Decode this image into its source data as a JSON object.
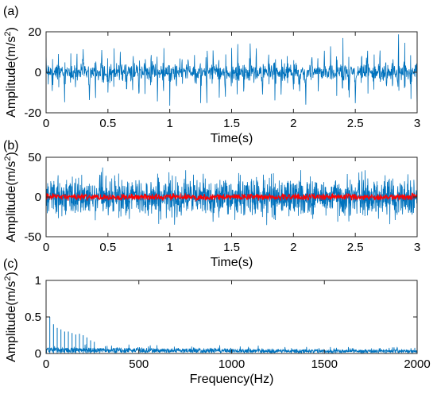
{
  "chart_data": [
    {
      "panel_label": "(a)",
      "type": "line",
      "xlabel": "Time(s)",
      "ylabel_main": "Amplitude(m/s",
      "ylabel_sup": "2",
      "ylabel_close": ")",
      "xlim": [
        0,
        3
      ],
      "ylim": [
        -20,
        20
      ],
      "xticks": [
        0,
        0.5,
        1,
        1.5,
        2,
        2.5,
        3
      ],
      "xtick_labels": [
        "0",
        "0.5",
        "1",
        "1.5",
        "2",
        "2.5",
        "3"
      ],
      "yticks": [
        -20,
        0,
        20
      ],
      "ytick_labels": [
        "-20",
        "0",
        "20"
      ],
      "grid": false,
      "series": [
        {
          "color": "#0072BD",
          "signal": "periodic impulse train",
          "impulse_period_s": 0.05,
          "impulse_peak_range": [
            10,
            18
          ],
          "noise_amplitude": 3.5
        }
      ]
    },
    {
      "panel_label": "(b)",
      "type": "line",
      "xlabel": "Time(s)",
      "ylabel_main": "Amplitude(m/s",
      "ylabel_sup": "2",
      "ylabel_close": ")",
      "xlim": [
        0,
        3
      ],
      "ylim": [
        -50,
        50
      ],
      "xticks": [
        0,
        0.5,
        1,
        1.5,
        2,
        2.5,
        3
      ],
      "xtick_labels": [
        "0",
        "0.5",
        "1",
        "1.5",
        "2",
        "2.5",
        "3"
      ],
      "yticks": [
        -50,
        0,
        50
      ],
      "ytick_labels": [
        "-50",
        "0",
        "50"
      ],
      "grid": false,
      "series": [
        {
          "color": "#0072BD",
          "signal": "broadband noise",
          "amplitude_range": [
            -40,
            40
          ],
          "typical_envelope": 28
        },
        {
          "color": "#FF0000",
          "signal": "impulse train overlay",
          "amplitude_range": [
            -5,
            5
          ]
        }
      ]
    },
    {
      "panel_label": "(c)",
      "type": "line",
      "xlabel": "Frequency(Hz)",
      "ylabel_main": "Amplitude(m/s",
      "ylabel_sup": "2",
      "ylabel_close": ")",
      "xlim": [
        0,
        2000
      ],
      "ylim": [
        0,
        1
      ],
      "xticks": [
        0,
        500,
        1000,
        1500,
        2000
      ],
      "xtick_labels": [
        "0",
        "500",
        "1000",
        "1500",
        "2000"
      ],
      "yticks": [
        0,
        0.5,
        1
      ],
      "ytick_labels": [
        "0",
        "0.5",
        "1"
      ],
      "grid": false,
      "series": [
        {
          "color": "#0072BD",
          "signal": "amplitude spectrum",
          "peaks": [
            {
              "x": 20,
              "y": 0.5
            },
            {
              "x": 40,
              "y": 0.4
            },
            {
              "x": 60,
              "y": 0.35
            },
            {
              "x": 80,
              "y": 0.33
            },
            {
              "x": 100,
              "y": 0.3
            },
            {
              "x": 120,
              "y": 0.3
            },
            {
              "x": 140,
              "y": 0.28
            },
            {
              "x": 160,
              "y": 0.26
            },
            {
              "x": 180,
              "y": 0.27
            },
            {
              "x": 200,
              "y": 0.25
            },
            {
              "x": 220,
              "y": 0.22
            },
            {
              "x": 240,
              "y": 0.18
            },
            {
              "x": 260,
              "y": 0.16
            }
          ],
          "noise_floor_near_0Hz": 0.1,
          "noise_floor_at_2000Hz": 0.06
        }
      ]
    }
  ]
}
